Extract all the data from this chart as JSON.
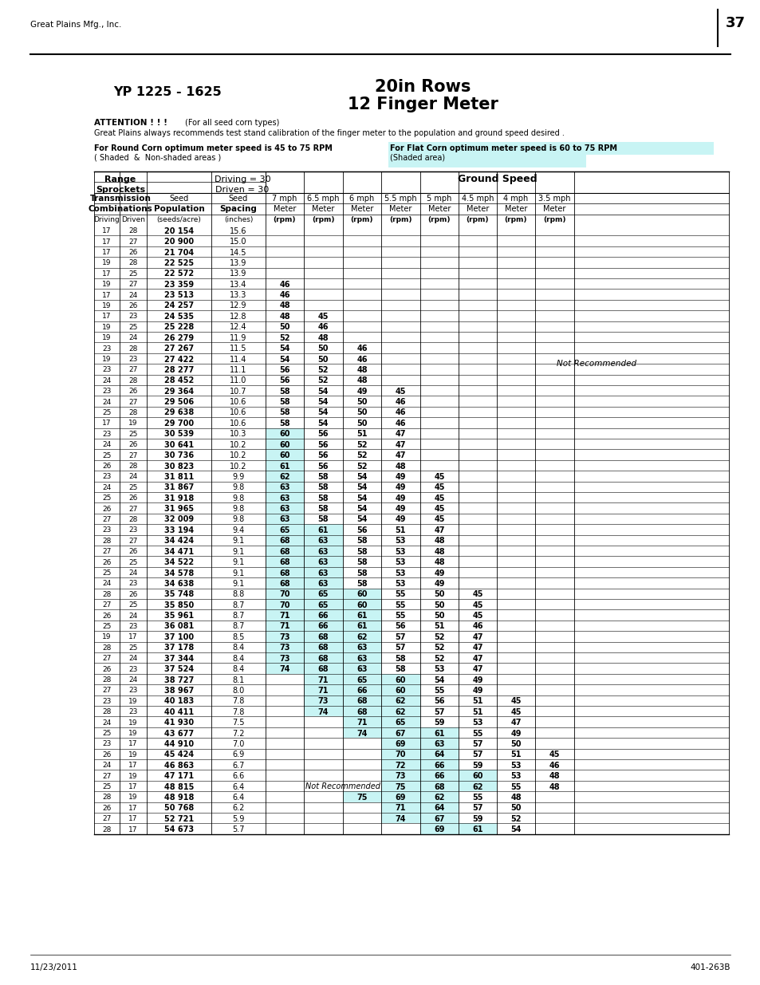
{
  "page_header_left": "Great Plains Mfg., Inc.",
  "page_number": "37",
  "title_left": "YP 1225 - 1625",
  "title_right_line1": "20in Rows",
  "title_right_line2": "12 Finger Meter",
  "footer_left": "11/23/2011",
  "footer_right": "401-263B",
  "flat_corn_bg": "#c8f4f4",
  "shaded_cell_bg": "#c8f4f4",
  "table_data": [
    [
      17,
      28,
      "20 154",
      "15.6",
      "",
      "",
      "",
      "",
      "",
      "",
      "",
      ""
    ],
    [
      17,
      27,
      "20 900",
      "15.0",
      "",
      "",
      "",
      "",
      "",
      "",
      "",
      ""
    ],
    [
      17,
      26,
      "21 704",
      "14.5",
      "",
      "",
      "",
      "",
      "",
      "",
      "",
      ""
    ],
    [
      19,
      28,
      "22 525",
      "13.9",
      "",
      "",
      "",
      "",
      "",
      "",
      "",
      ""
    ],
    [
      17,
      25,
      "22 572",
      "13.9",
      "",
      "",
      "",
      "",
      "",
      "",
      "",
      ""
    ],
    [
      19,
      27,
      "23 359",
      "13.4",
      "46",
      "",
      "",
      "",
      "",
      "",
      "",
      ""
    ],
    [
      17,
      24,
      "23 513",
      "13.3",
      "46",
      "",
      "",
      "",
      "",
      "",
      "",
      ""
    ],
    [
      19,
      26,
      "24 257",
      "12.9",
      "48",
      "",
      "",
      "",
      "",
      "",
      "",
      ""
    ],
    [
      17,
      23,
      "24 535",
      "12.8",
      "48",
      "45",
      "",
      "",
      "",
      "",
      "",
      ""
    ],
    [
      19,
      25,
      "25 228",
      "12.4",
      "50",
      "46",
      "",
      "",
      "",
      "",
      "",
      ""
    ],
    [
      19,
      24,
      "26 279",
      "11.9",
      "52",
      "48",
      "",
      "",
      "",
      "",
      "",
      ""
    ],
    [
      23,
      28,
      "27 267",
      "11.5",
      "54",
      "50",
      "46",
      "",
      "NR",
      "",
      "",
      ""
    ],
    [
      19,
      23,
      "27 422",
      "11.4",
      "54",
      "50",
      "46",
      "",
      "NR",
      "",
      "",
      ""
    ],
    [
      23,
      27,
      "28 277",
      "11.1",
      "56",
      "52",
      "48",
      "",
      "NR",
      "",
      "",
      ""
    ],
    [
      24,
      28,
      "28 452",
      "11.0",
      "56",
      "52",
      "48",
      "",
      "NR",
      "",
      "",
      ""
    ],
    [
      23,
      26,
      "29 364",
      "10.7",
      "58",
      "54",
      "49",
      "45",
      "",
      "",
      "",
      ""
    ],
    [
      24,
      27,
      "29 506",
      "10.6",
      "58",
      "54",
      "50",
      "46",
      "",
      "",
      "",
      ""
    ],
    [
      25,
      28,
      "29 638",
      "10.6",
      "58",
      "54",
      "50",
      "46",
      "",
      "",
      "",
      ""
    ],
    [
      17,
      19,
      "29 700",
      "10.6",
      "58",
      "54",
      "50",
      "46",
      "",
      "",
      "",
      ""
    ],
    [
      23,
      25,
      "30 539",
      "10.3",
      "60",
      "56",
      "51",
      "47",
      "",
      "",
      "",
      ""
    ],
    [
      24,
      26,
      "30 641",
      "10.2",
      "60",
      "56",
      "52",
      "47",
      "",
      "",
      "",
      ""
    ],
    [
      25,
      27,
      "30 736",
      "10.2",
      "60",
      "56",
      "52",
      "47",
      "",
      "",
      "",
      ""
    ],
    [
      26,
      28,
      "30 823",
      "10.2",
      "61",
      "56",
      "52",
      "48",
      "",
      "",
      "",
      ""
    ],
    [
      23,
      24,
      "31 811",
      "9.9",
      "62",
      "58",
      "54",
      "49",
      "45",
      "",
      "",
      ""
    ],
    [
      24,
      25,
      "31 867",
      "9.8",
      "63",
      "58",
      "54",
      "49",
      "45",
      "",
      "",
      ""
    ],
    [
      25,
      26,
      "31 918",
      "9.8",
      "63",
      "58",
      "54",
      "49",
      "45",
      "",
      "",
      ""
    ],
    [
      26,
      27,
      "31 965",
      "9.8",
      "63",
      "58",
      "54",
      "49",
      "45",
      "",
      "",
      ""
    ],
    [
      27,
      28,
      "32 009",
      "9.8",
      "63",
      "58",
      "54",
      "49",
      "45",
      "",
      "",
      ""
    ],
    [
      23,
      23,
      "33 194",
      "9.4",
      "65",
      "61",
      "56",
      "51",
      "47",
      "",
      "",
      ""
    ],
    [
      28,
      27,
      "34 424",
      "9.1",
      "68",
      "63",
      "58",
      "53",
      "48",
      "",
      "",
      ""
    ],
    [
      27,
      26,
      "34 471",
      "9.1",
      "68",
      "63",
      "58",
      "53",
      "48",
      "",
      "",
      ""
    ],
    [
      26,
      25,
      "34 522",
      "9.1",
      "68",
      "63",
      "58",
      "53",
      "48",
      "",
      "",
      ""
    ],
    [
      25,
      24,
      "34 578",
      "9.1",
      "68",
      "63",
      "58",
      "53",
      "49",
      "",
      "",
      ""
    ],
    [
      24,
      23,
      "34 638",
      "9.1",
      "68",
      "63",
      "58",
      "53",
      "49",
      "",
      "",
      ""
    ],
    [
      28,
      26,
      "35 748",
      "8.8",
      "70",
      "65",
      "60",
      "55",
      "50",
      "45",
      "",
      ""
    ],
    [
      27,
      25,
      "35 850",
      "8.7",
      "70",
      "65",
      "60",
      "55",
      "50",
      "45",
      "",
      ""
    ],
    [
      26,
      24,
      "35 961",
      "8.7",
      "71",
      "66",
      "61",
      "55",
      "50",
      "45",
      "",
      ""
    ],
    [
      25,
      23,
      "36 081",
      "8.7",
      "71",
      "66",
      "61",
      "56",
      "51",
      "46",
      "",
      ""
    ],
    [
      19,
      17,
      "37 100",
      "8.5",
      "73",
      "68",
      "62",
      "57",
      "52",
      "47",
      "",
      ""
    ],
    [
      28,
      25,
      "37 178",
      "8.4",
      "73",
      "68",
      "63",
      "57",
      "52",
      "47",
      "",
      ""
    ],
    [
      27,
      24,
      "37 344",
      "8.4",
      "73",
      "68",
      "63",
      "58",
      "52",
      "47",
      "",
      ""
    ],
    [
      26,
      23,
      "37 524",
      "8.4",
      "74",
      "68",
      "63",
      "58",
      "53",
      "47",
      "",
      ""
    ],
    [
      28,
      24,
      "38 727",
      "8.1",
      "",
      "71",
      "65",
      "60",
      "54",
      "49",
      "",
      ""
    ],
    [
      27,
      23,
      "38 967",
      "8.0",
      "",
      "71",
      "66",
      "60",
      "55",
      "49",
      "",
      ""
    ],
    [
      23,
      19,
      "40 183",
      "7.8",
      "",
      "73",
      "68",
      "62",
      "56",
      "51",
      "45",
      ""
    ],
    [
      28,
      23,
      "40 411",
      "7.8",
      "",
      "74",
      "68",
      "62",
      "57",
      "51",
      "45",
      ""
    ],
    [
      24,
      19,
      "41 930",
      "7.5",
      "",
      "",
      "71",
      "65",
      "59",
      "53",
      "47",
      ""
    ],
    [
      25,
      19,
      "43 677",
      "7.2",
      "",
      "",
      "74",
      "67",
      "61",
      "55",
      "49",
      ""
    ],
    [
      23,
      17,
      "44 910",
      "7.0",
      "",
      "",
      "",
      "69",
      "63",
      "57",
      "50",
      ""
    ],
    [
      26,
      19,
      "45 424",
      "6.9",
      "",
      "",
      "",
      "70",
      "64",
      "57",
      "51",
      "45"
    ],
    [
      24,
      17,
      "46 863",
      "6.7",
      "",
      "",
      "",
      "72",
      "66",
      "59",
      "53",
      "46"
    ],
    [
      27,
      19,
      "47 171",
      "6.6",
      "",
      "",
      "",
      "73",
      "66",
      "60",
      "53",
      "48"
    ],
    [
      25,
      17,
      "48 815",
      "6.4",
      "",
      "",
      "",
      "75",
      "68",
      "62",
      "55",
      "48"
    ],
    [
      28,
      19,
      "48 918",
      "6.4",
      "NR2",
      "",
      "75",
      "69",
      "62",
      "55",
      "48",
      ""
    ],
    [
      26,
      17,
      "50 768",
      "6.2",
      "",
      "",
      "",
      "71",
      "64",
      "57",
      "50",
      ""
    ],
    [
      27,
      17,
      "52 721",
      "5.9",
      "",
      "",
      "",
      "74",
      "67",
      "59",
      "52",
      ""
    ],
    [
      28,
      17,
      "54 673",
      "5.7",
      "",
      "",
      "",
      "",
      "69",
      "61",
      "54",
      ""
    ]
  ]
}
